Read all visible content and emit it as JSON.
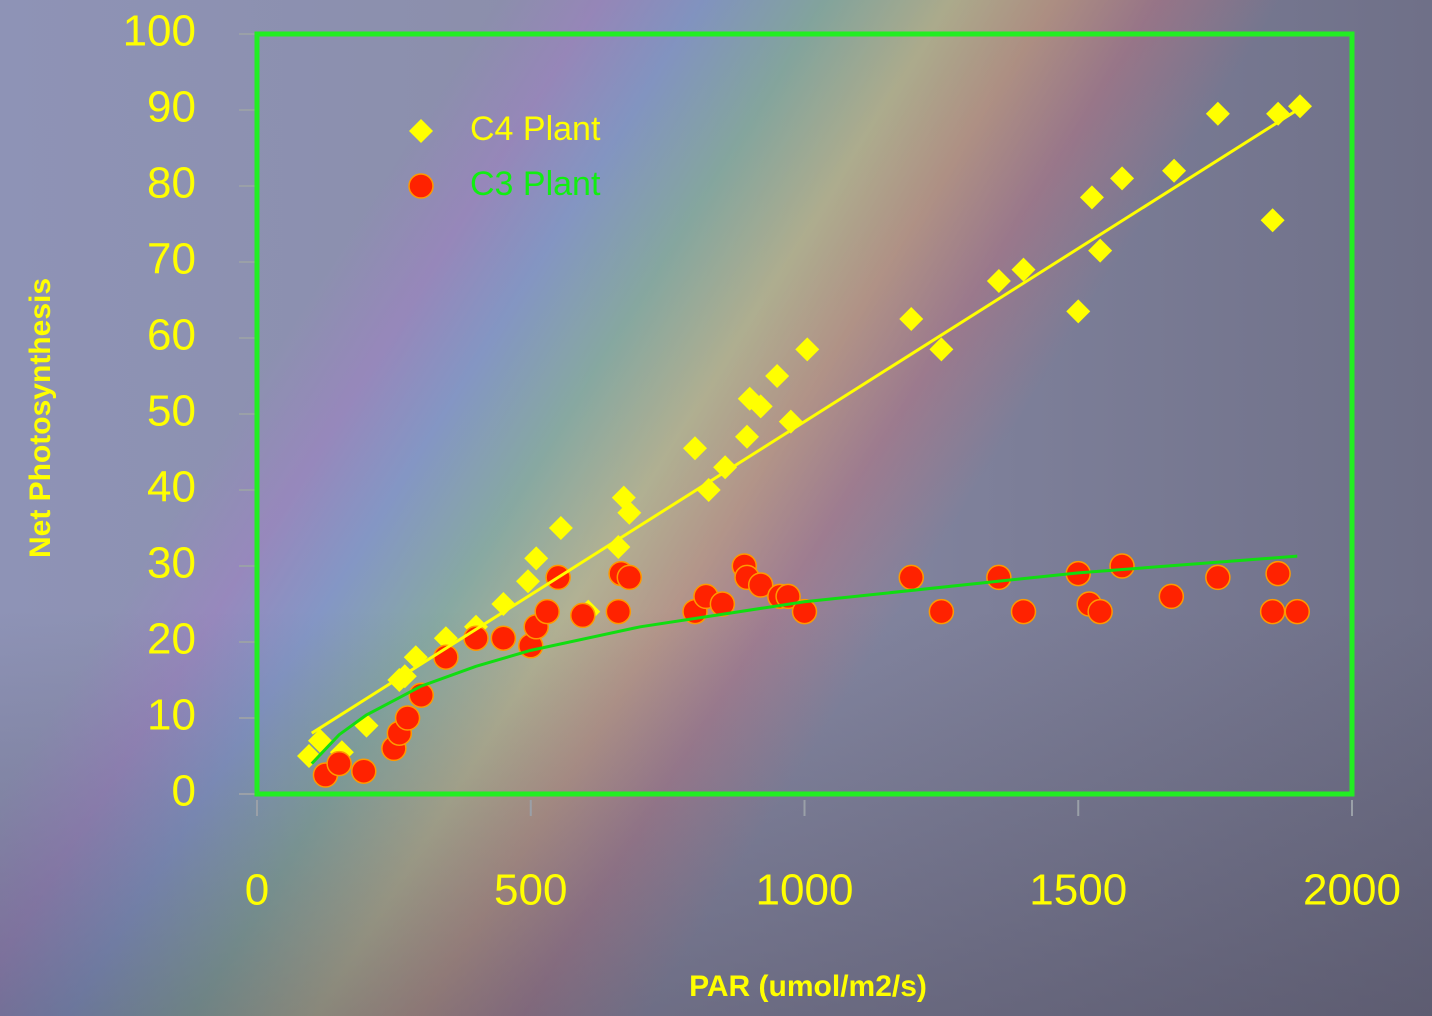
{
  "chart_data": {
    "type": "scatter",
    "x_label": "PAR (umol/m2/s)",
    "y_label": "Net Photosynthesis",
    "xlim": [
      0,
      2000
    ],
    "ylim": [
      0,
      100
    ],
    "xticks": [
      0,
      500,
      1000,
      1500,
      2000
    ],
    "yticks": [
      0,
      10,
      20,
      30,
      40,
      50,
      60,
      70,
      80,
      90,
      100
    ],
    "legend": "upper left",
    "frame_color": "#22ee22",
    "tick_label_color": "#ffff00",
    "series": [
      {
        "name": "C4 Plant",
        "marker": "diamond",
        "color": "#ffff00",
        "label_color": "#ffff00",
        "x": [
          95,
          115,
          155,
          200,
          260,
          270,
          290,
          345,
          400,
          450,
          495,
          510,
          555,
          605,
          660,
          670,
          680,
          800,
          825,
          855,
          895,
          900,
          920,
          950,
          975,
          1005,
          1195,
          1250,
          1355,
          1400,
          1500,
          1525,
          1540,
          1580,
          1675,
          1755,
          1855,
          1865,
          1905
        ],
        "values": [
          5,
          7,
          5.5,
          9,
          15,
          15.5,
          18,
          20.5,
          22,
          25,
          28,
          31,
          35,
          24,
          32.5,
          39,
          37,
          45.5,
          40,
          43,
          47,
          52,
          51,
          55,
          49,
          58.5,
          62.5,
          58.5,
          67.5,
          69,
          63.5,
          78.5,
          71.5,
          81,
          82,
          89.5,
          75.5,
          89.5,
          90.5
        ],
        "trend": {
          "color": "#ffff00",
          "x": [
            100,
            1900
          ],
          "values": [
            8,
            90
          ]
        }
      },
      {
        "name": "C3 Plant",
        "marker": "circle",
        "color": "#ff2200",
        "label_color": "#11ee11",
        "x": [
          125,
          150,
          195,
          250,
          260,
          275,
          300,
          345,
          400,
          450,
          500,
          510,
          530,
          550,
          595,
          660,
          665,
          680,
          800,
          820,
          850,
          890,
          895,
          920,
          955,
          970,
          1000,
          1195,
          1250,
          1355,
          1400,
          1500,
          1520,
          1540,
          1580,
          1670,
          1755,
          1855,
          1865,
          1900
        ],
        "values": [
          2.5,
          4,
          3,
          6,
          8,
          10,
          13,
          18,
          20.5,
          20.5,
          19.5,
          22,
          24,
          28.5,
          23.5,
          24,
          29,
          28.5,
          24,
          26,
          25,
          30,
          28.5,
          27.5,
          26,
          26,
          24,
          28.5,
          24,
          28.5,
          24,
          29,
          25,
          24,
          30,
          26,
          28.5,
          24,
          29,
          24
        ],
        "trend": {
          "color": "#11dd11",
          "x": [
            100,
            150,
            200,
            300,
            400,
            500,
            700,
            1000,
            1500,
            1900
          ],
          "values": [
            4,
            7.8,
            10.4,
            14.2,
            16.8,
            18.9,
            22,
            25.3,
            29.1,
            31.3
          ]
        }
      }
    ]
  }
}
